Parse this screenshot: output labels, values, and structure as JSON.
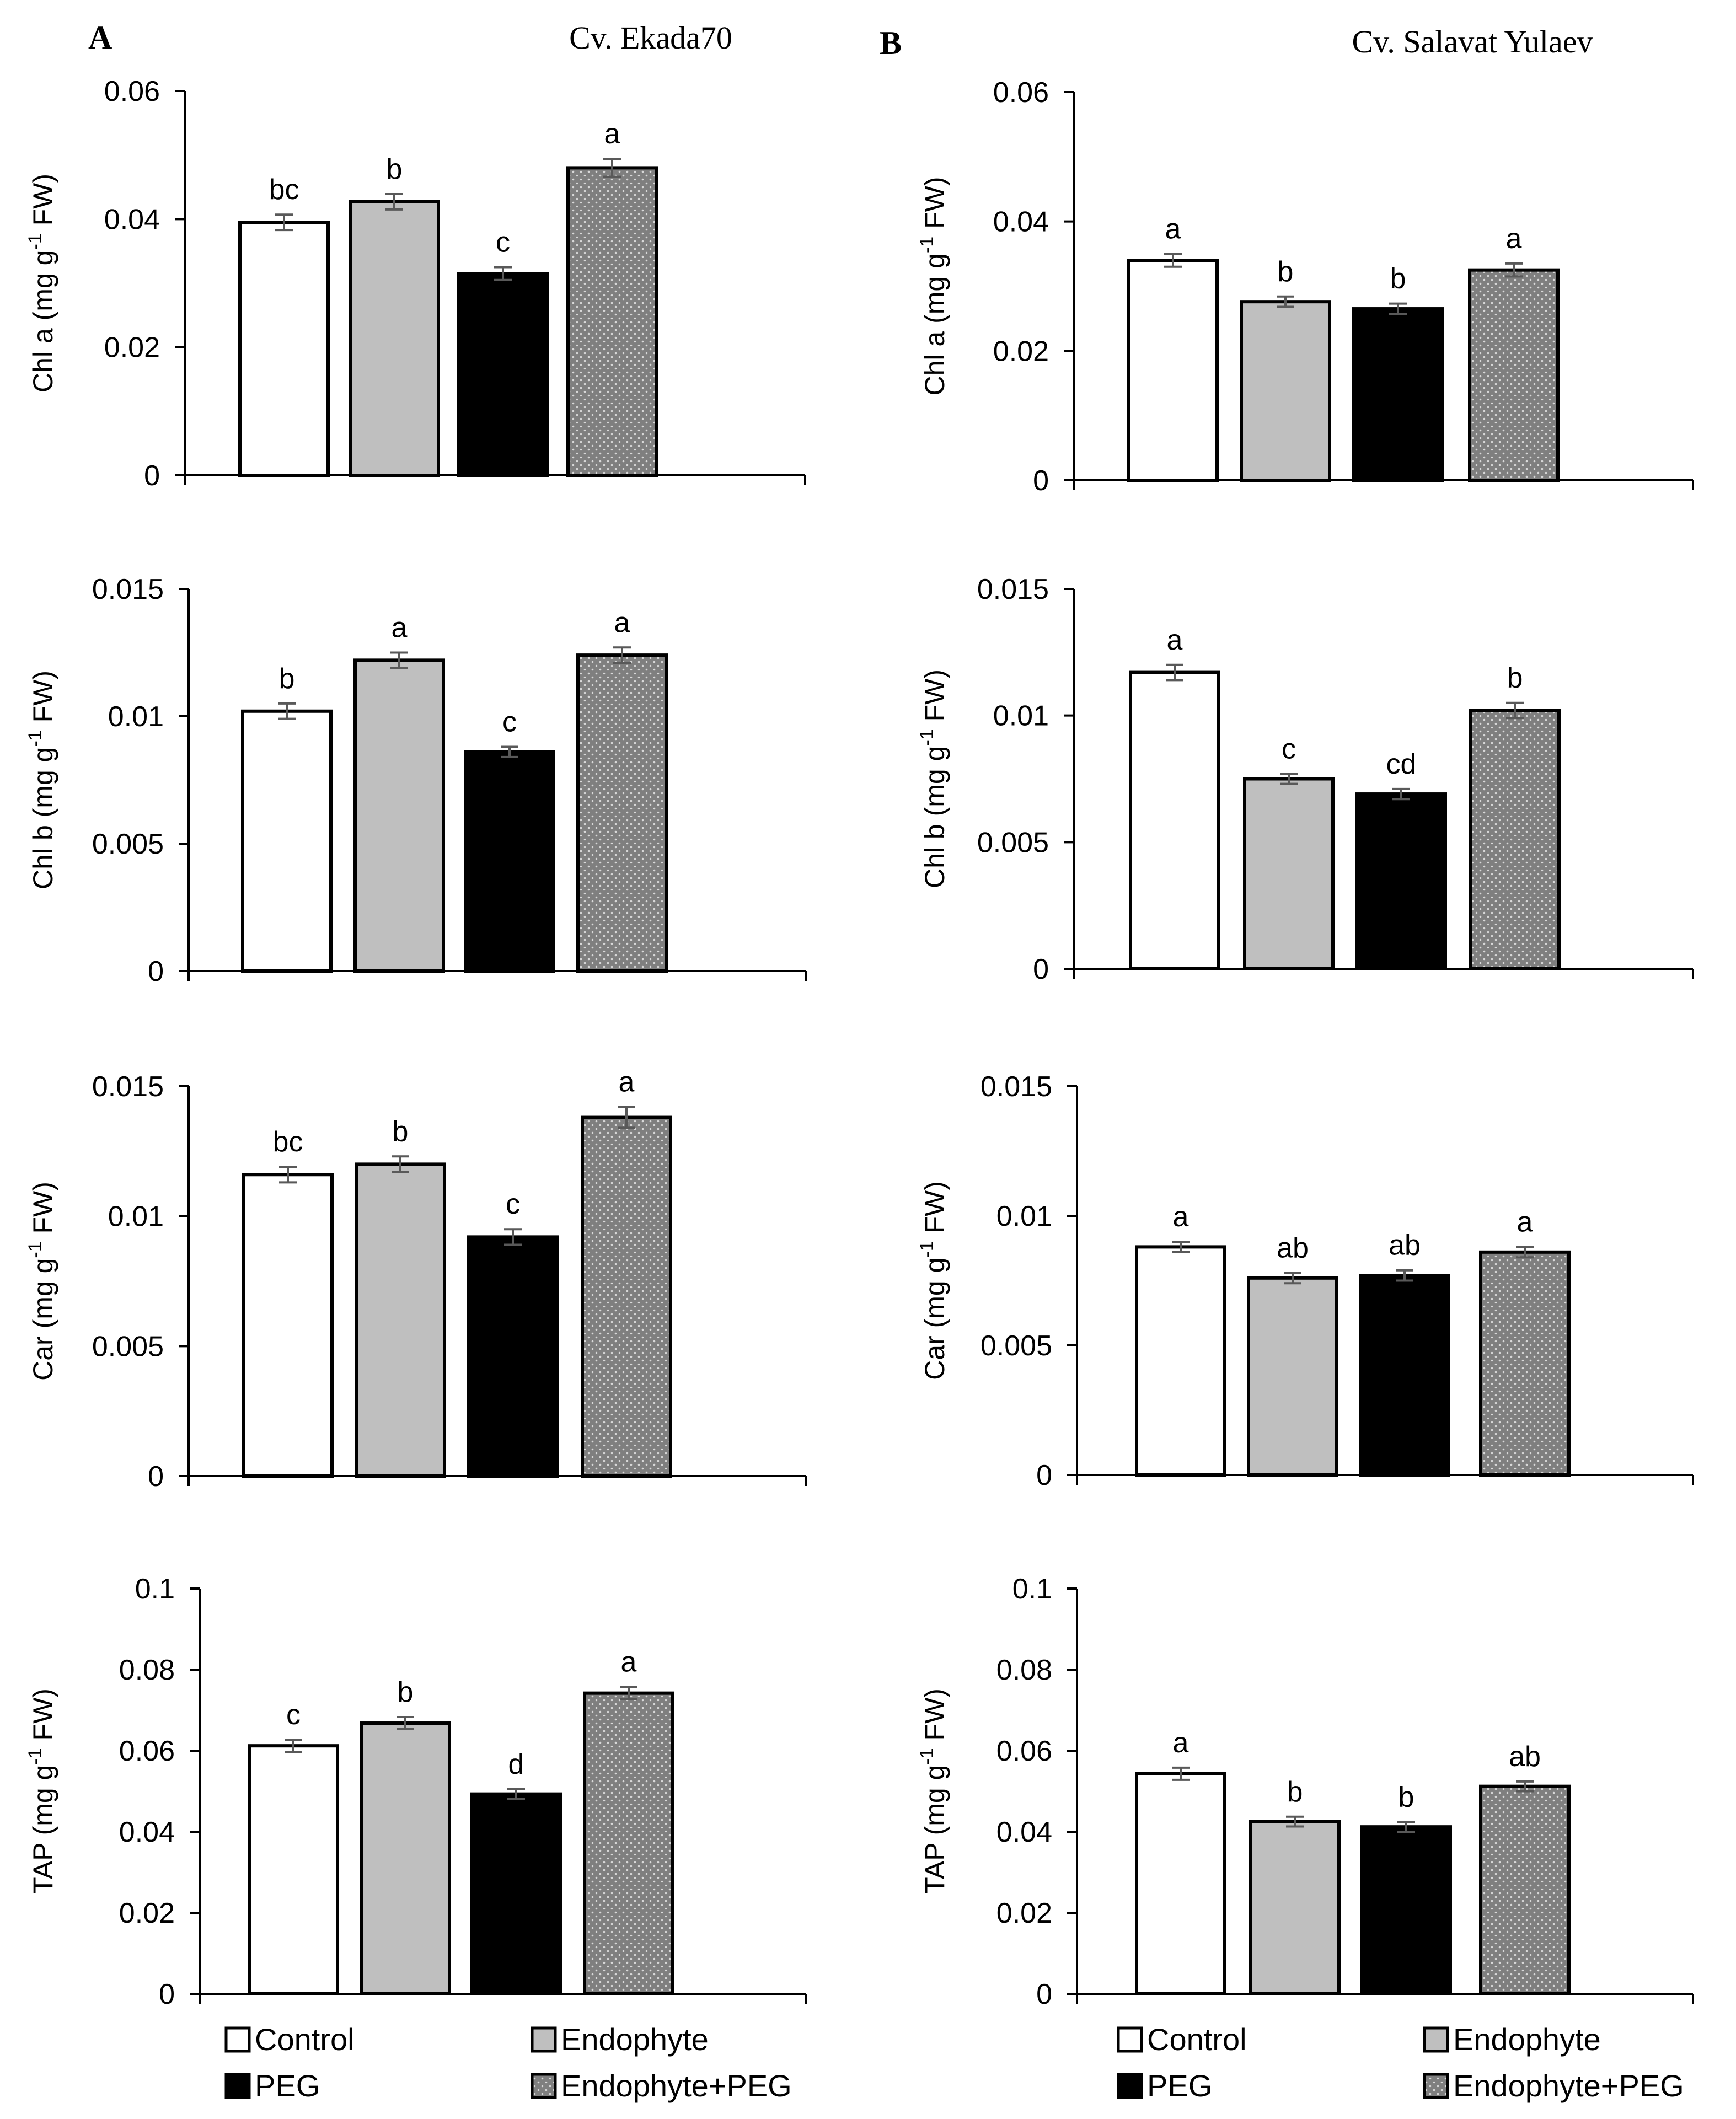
{
  "figure": {
    "panels": [
      {
        "letter": "A",
        "title": "Cv. Ekada70"
      },
      {
        "letter": "B",
        "title": "Cv. Salavat Yulaev"
      }
    ]
  },
  "colors": {
    "control": "#ffffff",
    "endophyte": "#bfbfbf",
    "peg": "#000000",
    "endophyte_peg": "#808080",
    "error_bar": "#595959"
  },
  "legend": {
    "items": [
      {
        "label": "Control",
        "key": "control"
      },
      {
        "label": "Endophyte",
        "key": "endophyte"
      },
      {
        "label": "PEG",
        "key": "peg"
      },
      {
        "label": "Endophyte+PEG",
        "key": "endophyte_peg"
      }
    ]
  },
  "chart_data": [
    {
      "type": "bar",
      "panel": "A",
      "title": "Cv. Ekada70",
      "ylabel_main": "Chl a (mg g",
      "ylabel_sup": "-1",
      "ylabel_tail": " FW)",
      "ylim": [
        0,
        0.06
      ],
      "yticks": [
        "0",
        "0.02",
        "0.04",
        "0.06"
      ],
      "ytick_values": [
        0,
        0.02,
        0.04,
        0.06
      ],
      "categories": [
        "Control",
        "Endophyte",
        "PEG",
        "Endophyte+PEG"
      ],
      "values": [
        0.0395,
        0.0427,
        0.0315,
        0.048
      ],
      "errors": [
        0.0012,
        0.0012,
        0.001,
        0.0014
      ],
      "letters": [
        "bc",
        "b",
        "c",
        "a"
      ]
    },
    {
      "type": "bar",
      "panel": "B",
      "title": "Cv. Salavat Yulaev",
      "ylabel_main": "Chl a (mg g",
      "ylabel_sup": "-1",
      "ylabel_tail": " FW)",
      "ylim": [
        0,
        0.06
      ],
      "yticks": [
        "0",
        "0.02",
        "0.04",
        "0.06"
      ],
      "ytick_values": [
        0,
        0.02,
        0.04,
        0.06
      ],
      "categories": [
        "Control",
        "Endophyte",
        "PEG",
        "Endophyte+PEG"
      ],
      "values": [
        0.034,
        0.0276,
        0.0265,
        0.0325
      ],
      "errors": [
        0.001,
        0.0008,
        0.0008,
        0.001
      ],
      "letters": [
        "a",
        "b",
        "b",
        "a"
      ]
    },
    {
      "type": "bar",
      "panel": "A",
      "ylabel_main": "Chl b (mg g",
      "ylabel_sup": "-1",
      "ylabel_tail": " FW)",
      "ylim": [
        0,
        0.015
      ],
      "yticks": [
        "0",
        "0.005",
        "0.01",
        "0.015"
      ],
      "ytick_values": [
        0,
        0.005,
        0.01,
        0.015
      ],
      "categories": [
        "Control",
        "Endophyte",
        "PEG",
        "Endophyte+PEG"
      ],
      "values": [
        0.0102,
        0.0122,
        0.0086,
        0.0124
      ],
      "errors": [
        0.0003,
        0.0003,
        0.0002,
        0.0003
      ],
      "letters": [
        "b",
        "a",
        "c",
        "a"
      ]
    },
    {
      "type": "bar",
      "panel": "B",
      "ylabel_main": "Chl b (mg g",
      "ylabel_sup": "-1",
      "ylabel_tail": " FW)",
      "ylim": [
        0,
        0.015
      ],
      "yticks": [
        "0",
        "0.005",
        "0.01",
        "0.015"
      ],
      "ytick_values": [
        0,
        0.005,
        0.01,
        0.015
      ],
      "categories": [
        "Control",
        "Endophyte",
        "PEG",
        "Endophyte+PEG"
      ],
      "values": [
        0.0117,
        0.0075,
        0.0069,
        0.0102
      ],
      "errors": [
        0.0003,
        0.0002,
        0.0002,
        0.0003
      ],
      "letters": [
        "a",
        "c",
        "cd",
        "b"
      ]
    },
    {
      "type": "bar",
      "panel": "A",
      "ylabel_main": "Car (mg g",
      "ylabel_sup": "-1",
      "ylabel_tail": " FW)",
      "ylim": [
        0,
        0.015
      ],
      "yticks": [
        "0",
        "0.005",
        "0.01",
        "0.015"
      ],
      "ytick_values": [
        0,
        0.005,
        0.01,
        0.015
      ],
      "categories": [
        "Control",
        "Endophyte",
        "PEG",
        "Endophyte+PEG"
      ],
      "values": [
        0.0116,
        0.012,
        0.0092,
        0.0138
      ],
      "errors": [
        0.0003,
        0.0003,
        0.0003,
        0.0004
      ],
      "letters": [
        "bc",
        "b",
        "c",
        "a"
      ]
    },
    {
      "type": "bar",
      "panel": "B",
      "ylabel_main": "Car (mg g",
      "ylabel_sup": "-1",
      "ylabel_tail": " FW)",
      "ylim": [
        0,
        0.015
      ],
      "yticks": [
        "0",
        "0.005",
        "0.01",
        "0.015"
      ],
      "ytick_values": [
        0,
        0.005,
        0.01,
        0.015
      ],
      "categories": [
        "Control",
        "Endophyte",
        "PEG",
        "Endophyte+PEG"
      ],
      "values": [
        0.0088,
        0.0076,
        0.0077,
        0.0086
      ],
      "errors": [
        0.0002,
        0.0002,
        0.0002,
        0.0002
      ],
      "letters": [
        "a",
        "ab",
        "ab",
        "a"
      ]
    },
    {
      "type": "bar",
      "panel": "A",
      "ylabel_main": "TAP (mg g",
      "ylabel_sup": "-1",
      "ylabel_tail": " FW)",
      "ylim": [
        0,
        0.1
      ],
      "yticks": [
        "0",
        "0.02",
        "0.04",
        "0.06",
        "0.08",
        "0.1"
      ],
      "ytick_values": [
        0,
        0.02,
        0.04,
        0.06,
        0.08,
        0.1
      ],
      "categories": [
        "Control",
        "Endophyte",
        "PEG",
        "Endophyte+PEG"
      ],
      "values": [
        0.0612,
        0.0668,
        0.0493,
        0.0742
      ],
      "errors": [
        0.0015,
        0.0015,
        0.0012,
        0.0015
      ],
      "letters": [
        "c",
        "b",
        "d",
        "a"
      ]
    },
    {
      "type": "bar",
      "panel": "B",
      "ylabel_main": "TAP (mg g",
      "ylabel_sup": "-1",
      "ylabel_tail": " FW)",
      "ylim": [
        0,
        0.1
      ],
      "yticks": [
        "0",
        "0.02",
        "0.04",
        "0.06",
        "0.08",
        "0.1"
      ],
      "ytick_values": [
        0,
        0.02,
        0.04,
        0.06,
        0.08,
        0.1
      ],
      "categories": [
        "Control",
        "Endophyte",
        "PEG",
        "Endophyte+PEG"
      ],
      "values": [
        0.0543,
        0.0425,
        0.0412,
        0.0512
      ],
      "errors": [
        0.0015,
        0.0012,
        0.0012,
        0.0012
      ],
      "letters": [
        "a",
        "b",
        "b",
        "ab"
      ]
    }
  ]
}
